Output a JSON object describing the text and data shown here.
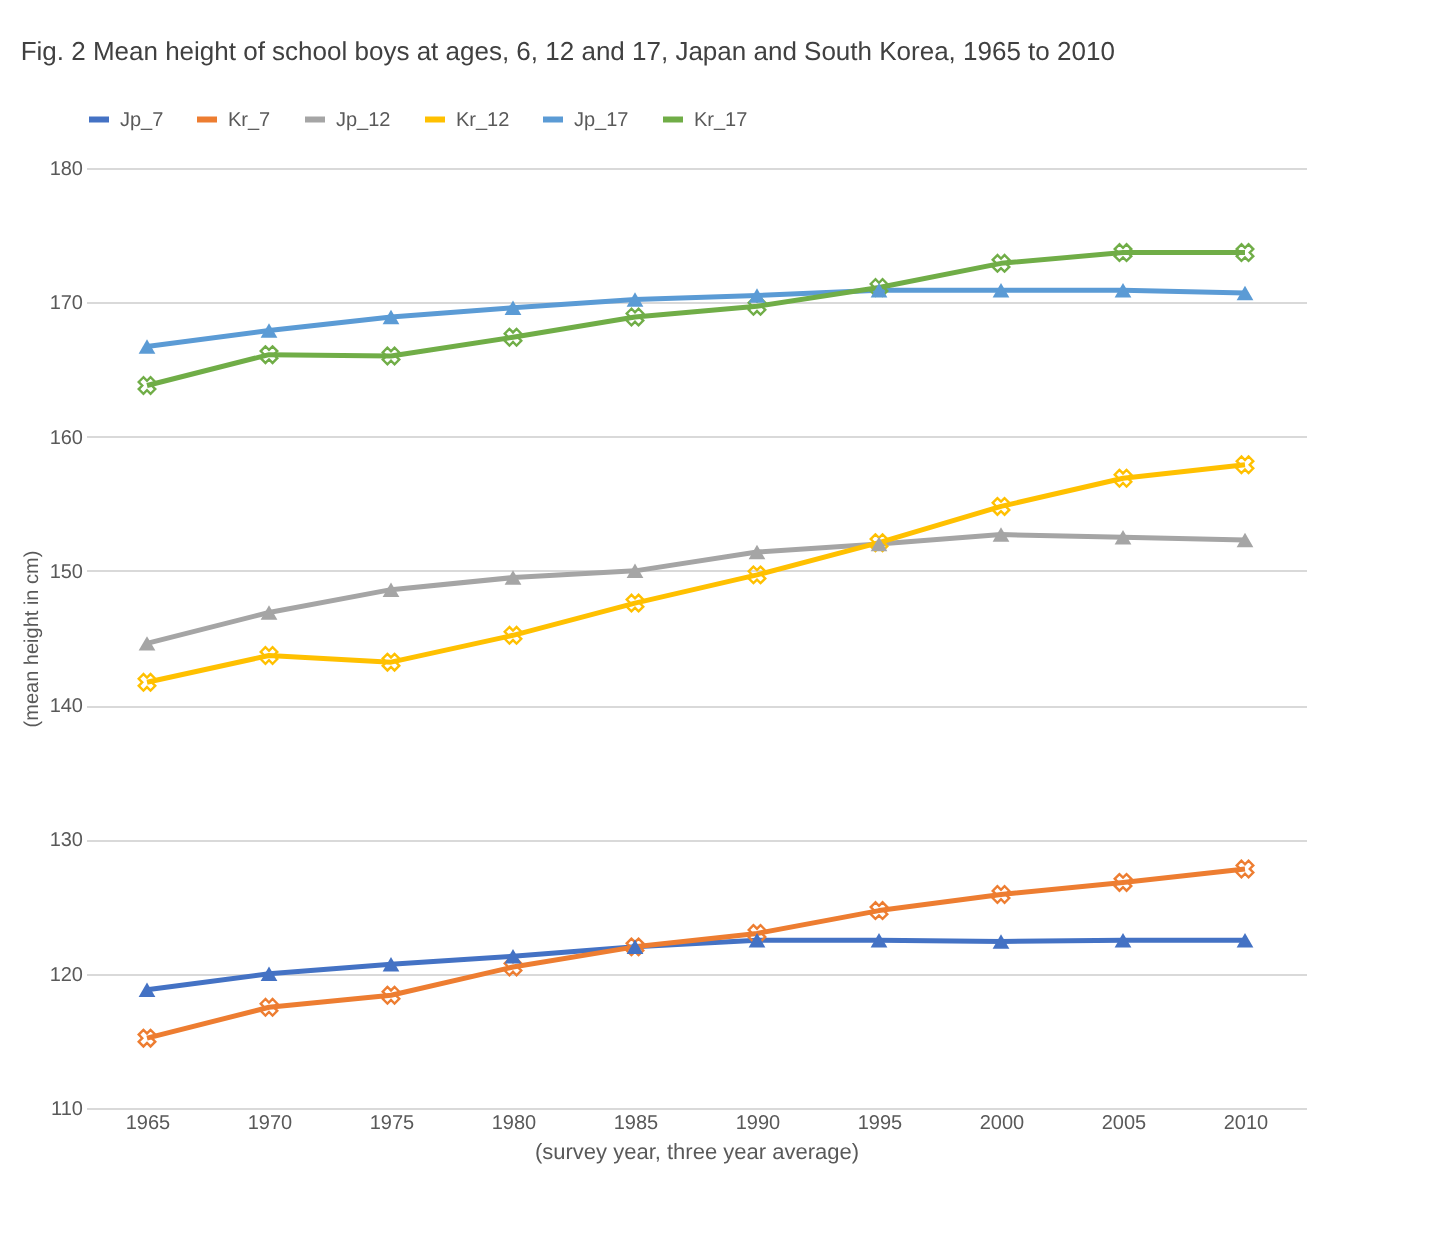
{
  "chart_data": {
    "type": "line",
    "title": "Fig. 2 Mean height of school boys at ages, 6, 12 and 17, Japan and South Korea, 1965 to 2010",
    "xlabel": "(survey year, three year average)",
    "ylabel": "(mean height in cm)",
    "categories": [
      "1965",
      "1970",
      "1975",
      "1980",
      "1985",
      "1990",
      "1995",
      "2000",
      "2005",
      "2010"
    ],
    "ylim": [
      110,
      180
    ],
    "yticks": [
      110,
      120,
      130,
      140,
      150,
      160,
      170,
      180
    ],
    "grid": "y",
    "legend": "top",
    "series": [
      {
        "name": "Jp_7",
        "color": "#4472c4",
        "marker": "triangle",
        "values": [
          118.8,
          120,
          120.7,
          121.3,
          122,
          122.5,
          122.5,
          122.4,
          122.5,
          122.5
        ]
      },
      {
        "name": "Kr_7",
        "color": "#ed7d31",
        "marker": "cross",
        "values": [
          115.2,
          117.5,
          118.4,
          120.5,
          122,
          123,
          124.7,
          125.9,
          126.8,
          127.8
        ]
      },
      {
        "name": "Jp_12",
        "color": "#a5a5a5",
        "marker": "triangle",
        "values": [
          144.6,
          146.9,
          148.6,
          149.5,
          150,
          151.4,
          152,
          152.7,
          152.5,
          152.3
        ]
      },
      {
        "name": "Kr_12",
        "color": "#ffc000",
        "marker": "cross",
        "values": [
          141.7,
          143.7,
          143.2,
          145.2,
          147.6,
          149.7,
          152.1,
          154.8,
          156.9,
          157.9
        ]
      },
      {
        "name": "Jp_17",
        "color": "#5b9bd5",
        "marker": "triangle",
        "values": [
          166.7,
          167.9,
          168.9,
          169.6,
          170.2,
          170.5,
          170.9,
          170.9,
          170.9,
          170.7
        ]
      },
      {
        "name": "Kr_17",
        "color": "#70ad47",
        "marker": "cross",
        "values": [
          163.8,
          166.1,
          166,
          167.4,
          168.9,
          169.7,
          171.1,
          172.9,
          173.7,
          173.7
        ]
      }
    ]
  }
}
